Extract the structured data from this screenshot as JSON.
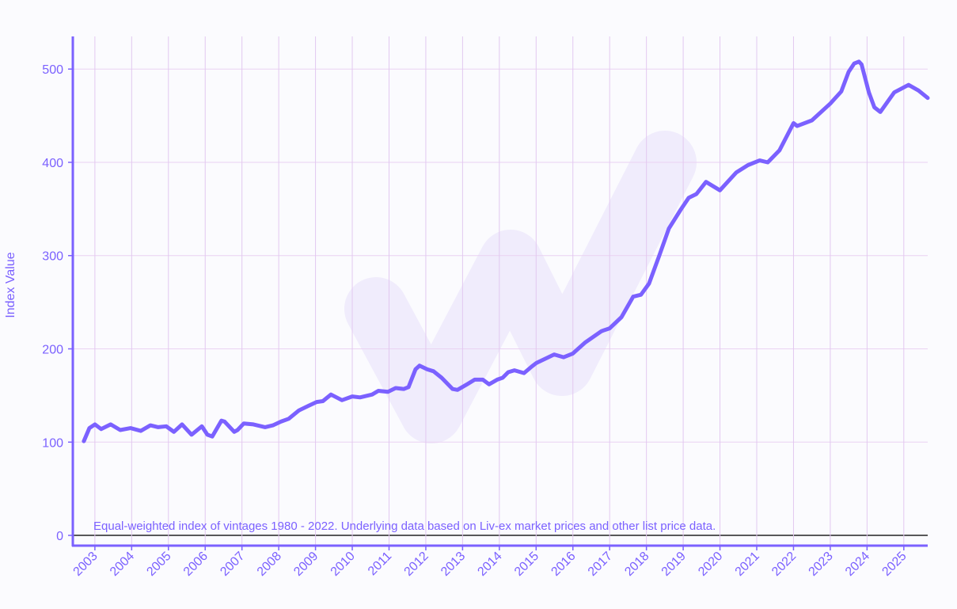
{
  "chart_data": {
    "type": "line",
    "y_label": "Index Value",
    "annotation": "Equal-weighted index of vintages 1980 - 2022. Underlying data based on Liv-ex market prices and other list price data.",
    "xlim": [
      2002.4,
      2025.65
    ],
    "xticks": [
      2003,
      2004,
      2005,
      2006,
      2007,
      2008,
      2009,
      2010,
      2011,
      2012,
      2013,
      2014,
      2015,
      2016,
      2017,
      2018,
      2019,
      2020,
      2021,
      2022,
      2023,
      2024,
      2025
    ],
    "ylim": [
      -11,
      535
    ],
    "yticks": [
      0,
      100,
      200,
      300,
      400,
      500
    ],
    "grid": true,
    "series": [
      {
        "color": "#7b61ff",
        "x": [
          2002.7,
          2002.85,
          2003.0,
          2003.17,
          2003.43,
          2003.69,
          2003.97,
          2004.25,
          2004.51,
          2004.72,
          2004.94,
          2005.15,
          2005.37,
          2005.63,
          2005.91,
          2006.06,
          2006.19,
          2006.44,
          2006.53,
          2006.79,
          2006.88,
          2007.05,
          2007.31,
          2007.63,
          2007.84,
          2008.06,
          2008.27,
          2008.55,
          2008.81,
          2009.03,
          2009.2,
          2009.42,
          2009.72,
          2010.0,
          2010.21,
          2010.54,
          2010.71,
          2010.97,
          2011.18,
          2011.4,
          2011.53,
          2011.72,
          2011.83,
          2012.04,
          2012.21,
          2012.43,
          2012.73,
          2012.86,
          2013.12,
          2013.33,
          2013.55,
          2013.72,
          2013.94,
          2014.09,
          2014.24,
          2014.41,
          2014.67,
          2014.88,
          2015.01,
          2015.49,
          2015.75,
          2016.0,
          2016.34,
          2016.78,
          2017.0,
          2017.32,
          2017.64,
          2017.85,
          2018.07,
          2018.35,
          2018.61,
          2018.93,
          2019.15,
          2019.36,
          2019.62,
          2020.0,
          2020.44,
          2020.76,
          2021.08,
          2021.3,
          2021.62,
          2022.0,
          2022.1,
          2022.5,
          2023.0,
          2023.3,
          2023.5,
          2023.65,
          2023.78,
          2023.85,
          2024.05,
          2024.2,
          2024.36,
          2024.74,
          2025.13,
          2025.4,
          2025.65
        ],
        "values": [
          101,
          115,
          119,
          114,
          119,
          113,
          115,
          112,
          118,
          116,
          117,
          111,
          119,
          108,
          117,
          108,
          106,
          123,
          122,
          111,
          113,
          120,
          119,
          116,
          118,
          122,
          125,
          134,
          139,
          143,
          144,
          151,
          145,
          149,
          148,
          151,
          155,
          154,
          158,
          157,
          159,
          178,
          182,
          178,
          176,
          169,
          157,
          156,
          162,
          167,
          167,
          162,
          167,
          169,
          175,
          177,
          174,
          181,
          185,
          194,
          191,
          195,
          207,
          219,
          222,
          234,
          256,
          258,
          270,
          300,
          329,
          349,
          362,
          366,
          379,
          370,
          389,
          397,
          402,
          400,
          413,
          442,
          439,
          445,
          463,
          476,
          497,
          506,
          508,
          505,
          475,
          459,
          454,
          475,
          483,
          477,
          469
        ]
      }
    ]
  }
}
